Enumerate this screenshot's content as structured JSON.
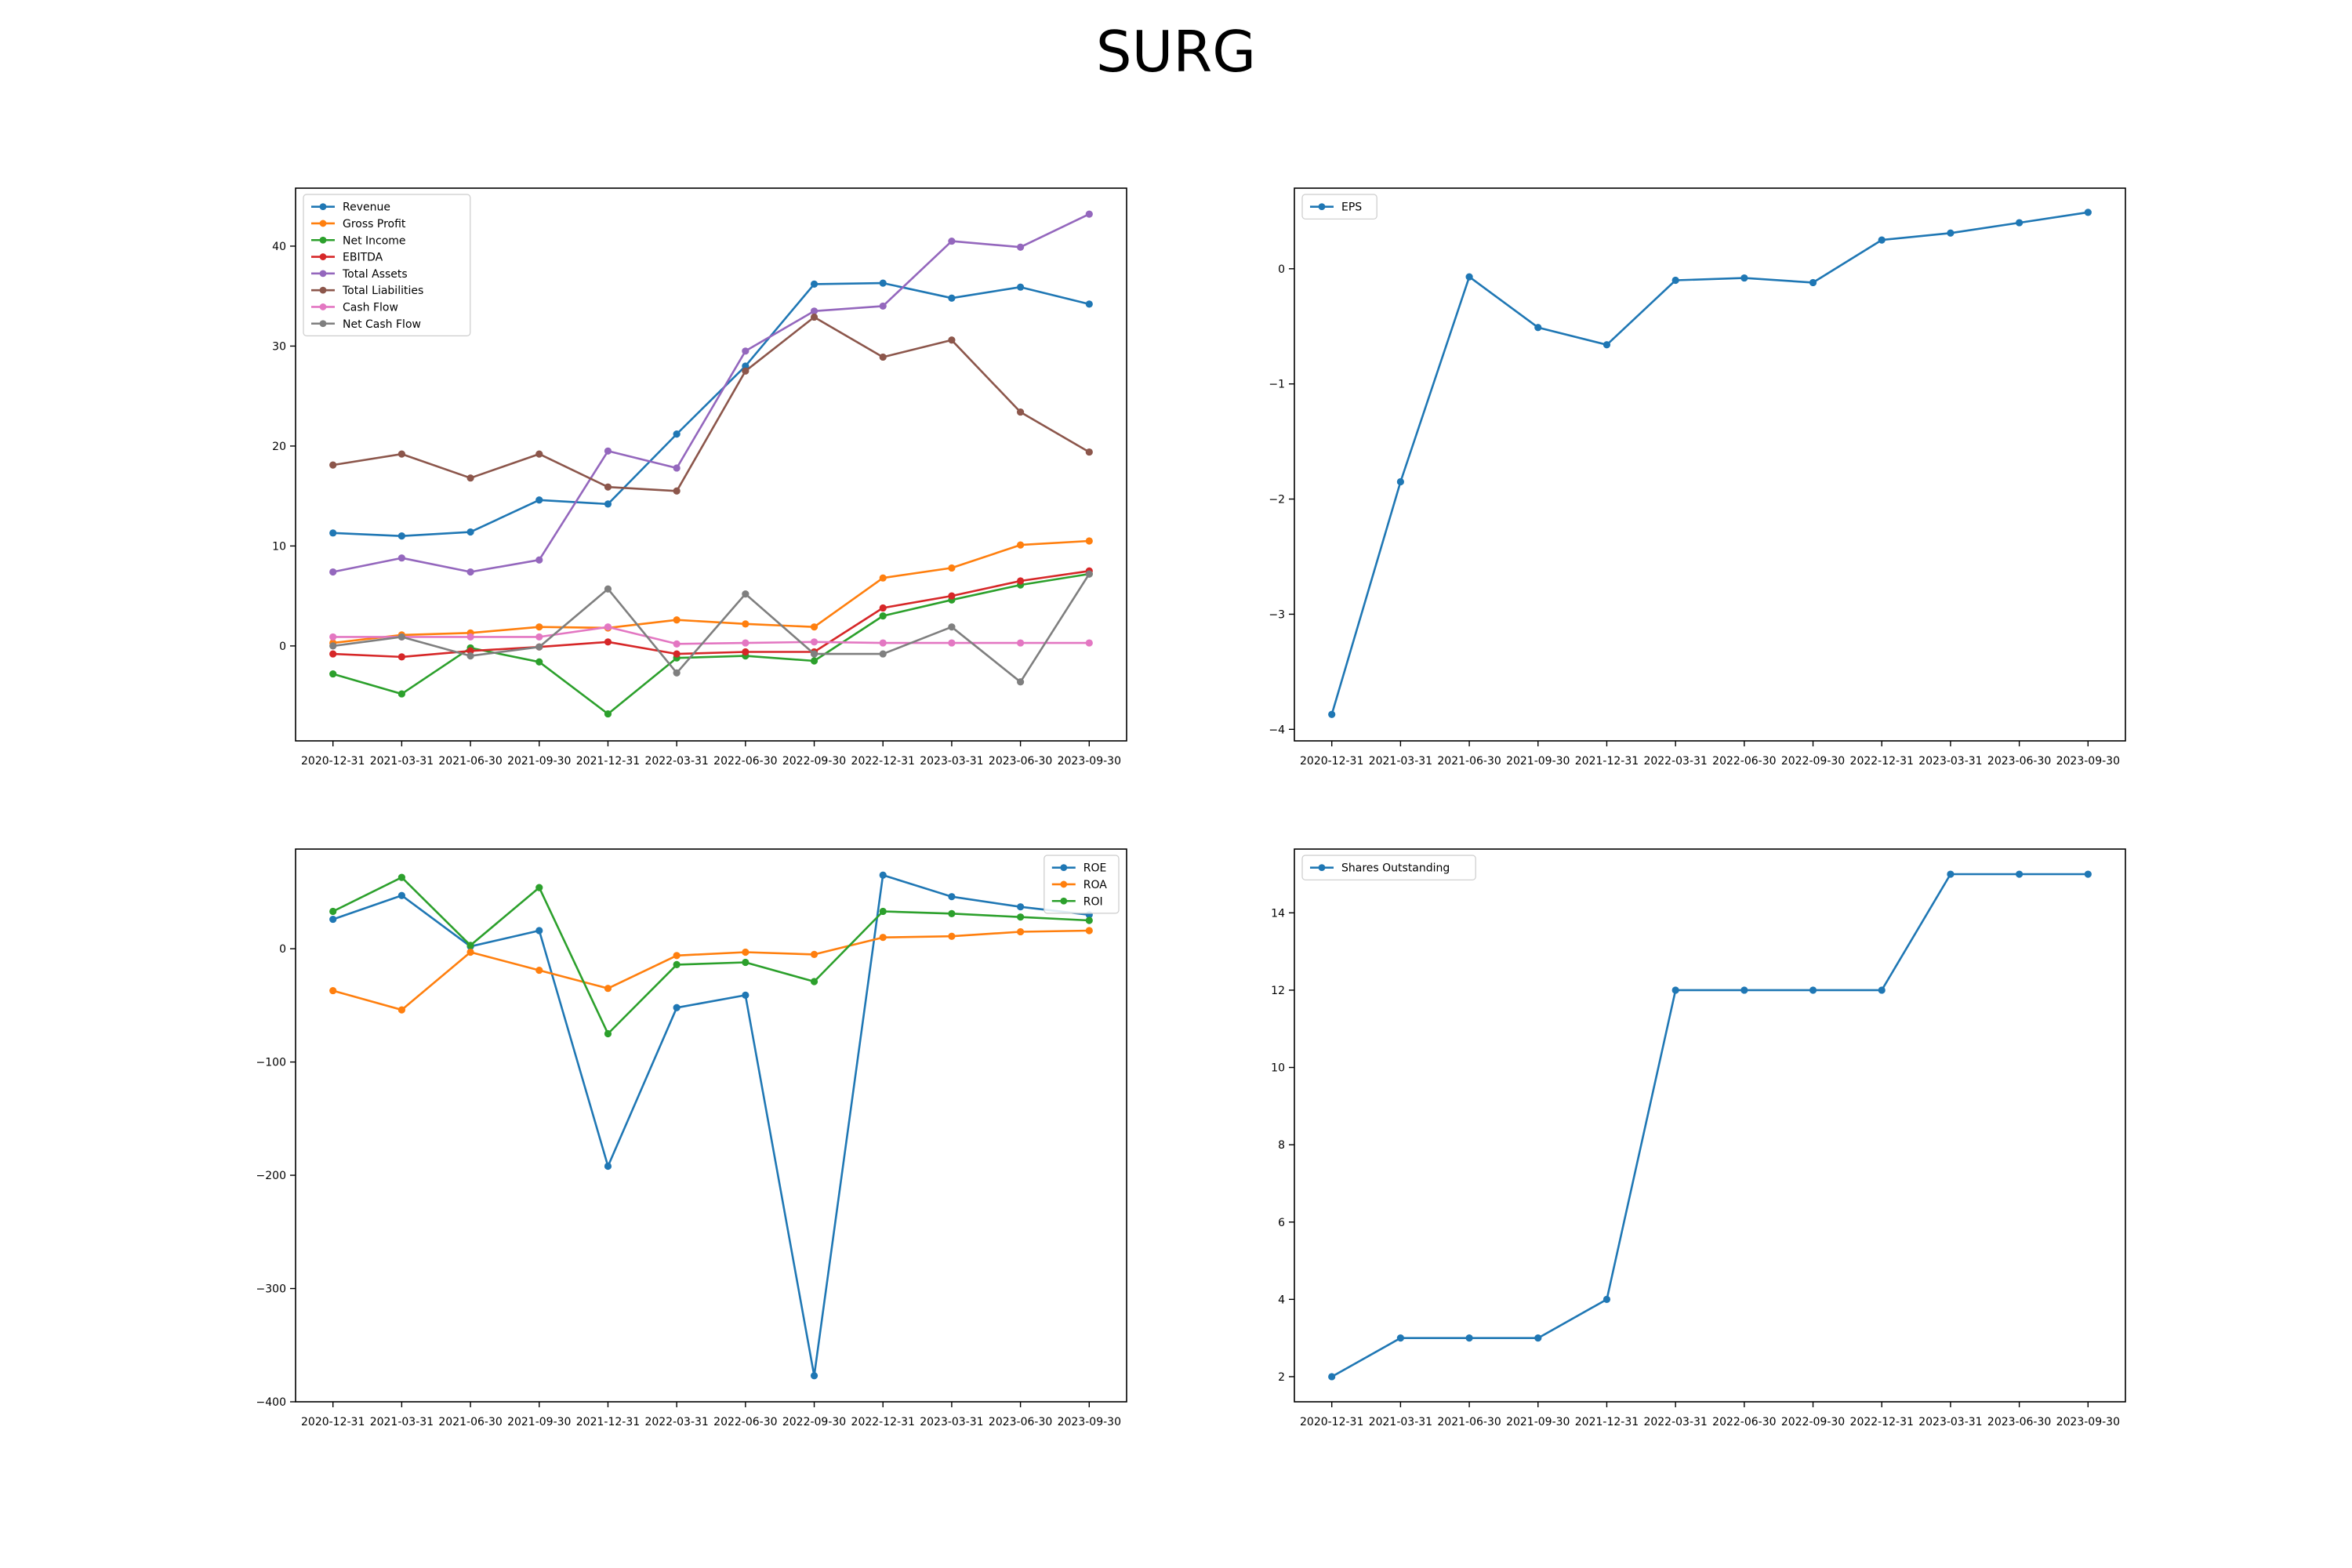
{
  "figure_title": "SURG",
  "chart_data": [
    {
      "type": "line",
      "categories": [
        "2020-12-31",
        "2021-03-31",
        "2021-06-30",
        "2021-09-30",
        "2021-12-31",
        "2022-03-31",
        "2022-06-30",
        "2022-09-30",
        "2022-12-31",
        "2023-03-31",
        "2023-06-30",
        "2023-09-30"
      ],
      "ylim": [
        -9.5,
        45.8
      ],
      "yticks": [
        0,
        10,
        20,
        30,
        40
      ],
      "legend_position": "upper left",
      "grid": false,
      "series": [
        {
          "name": "Revenue",
          "color": "#1f77b4",
          "values": [
            11.3,
            11.0,
            11.4,
            14.6,
            14.2,
            21.2,
            28.0,
            36.2,
            36.3,
            34.8,
            35.9,
            34.2
          ]
        },
        {
          "name": "Gross Profit",
          "color": "#ff7f0e",
          "values": [
            0.3,
            1.1,
            1.3,
            1.9,
            1.8,
            2.6,
            2.2,
            1.9,
            6.8,
            7.8,
            10.1,
            10.5
          ]
        },
        {
          "name": "Net Income",
          "color": "#2ca02c",
          "values": [
            -2.8,
            -4.8,
            -0.2,
            -1.6,
            -6.8,
            -1.2,
            -1.0,
            -1.5,
            3.0,
            4.6,
            6.1,
            7.2
          ]
        },
        {
          "name": "EBITDA",
          "color": "#d62728",
          "values": [
            -0.8,
            -1.1,
            -0.5,
            -0.1,
            0.4,
            -0.8,
            -0.6,
            -0.6,
            3.8,
            5.0,
            6.5,
            7.5
          ]
        },
        {
          "name": "Total Assets",
          "color": "#9467bd",
          "values": [
            7.4,
            8.8,
            7.4,
            8.6,
            19.5,
            17.8,
            29.5,
            33.5,
            34.0,
            40.5,
            39.9,
            43.2
          ]
        },
        {
          "name": "Total Liabilities",
          "color": "#8c564b",
          "values": [
            18.1,
            19.2,
            16.8,
            19.2,
            15.9,
            15.5,
            27.5,
            32.9,
            28.9,
            30.6,
            23.4,
            19.4
          ]
        },
        {
          "name": "Cash Flow",
          "color": "#e377c2",
          "values": [
            0.9,
            0.9,
            0.9,
            0.9,
            1.9,
            0.2,
            0.3,
            0.4,
            0.3,
            0.3,
            0.3,
            0.3
          ]
        },
        {
          "name": "Net Cash Flow",
          "color": "#7f7f7f",
          "values": [
            0.0,
            0.9,
            -1.0,
            -0.1,
            5.7,
            -2.7,
            5.2,
            -0.8,
            -0.8,
            1.9,
            -3.6,
            7.2
          ]
        }
      ]
    },
    {
      "type": "line",
      "categories": [
        "2020-12-31",
        "2021-03-31",
        "2021-06-30",
        "2021-09-30",
        "2021-12-31",
        "2022-03-31",
        "2022-06-30",
        "2022-09-30",
        "2022-12-31",
        "2023-03-31",
        "2023-06-30",
        "2023-09-30"
      ],
      "ylim": [
        -4.1,
        0.7
      ],
      "yticks": [
        -4,
        -3,
        -2,
        -1,
        0
      ],
      "legend_position": "upper left",
      "grid": false,
      "series": [
        {
          "name": "EPS",
          "color": "#1f77b4",
          "values": [
            -3.87,
            -1.85,
            -0.07,
            -0.51,
            -0.66,
            -0.1,
            -0.08,
            -0.12,
            0.25,
            0.31,
            0.4,
            0.49
          ]
        }
      ]
    },
    {
      "type": "line",
      "categories": [
        "2020-12-31",
        "2021-03-31",
        "2021-06-30",
        "2021-09-30",
        "2021-12-31",
        "2022-03-31",
        "2022-06-30",
        "2022-09-30",
        "2022-12-31",
        "2023-03-31",
        "2023-06-30",
        "2023-09-30"
      ],
      "ylim": [
        -400,
        88
      ],
      "yticks": [
        -400,
        -300,
        -200,
        -100,
        0
      ],
      "legend_position": "upper right",
      "grid": false,
      "series": [
        {
          "name": "ROE",
          "color": "#1f77b4",
          "values": [
            26,
            47,
            2,
            16,
            -192,
            -52,
            -41,
            -377,
            65,
            46,
            37,
            30
          ]
        },
        {
          "name": "ROA",
          "color": "#ff7f0e",
          "values": [
            -37,
            -54,
            -3,
            -19,
            -35,
            -6,
            -3,
            -5,
            10,
            11,
            15,
            16
          ]
        },
        {
          "name": "ROI",
          "color": "#2ca02c",
          "values": [
            33,
            63,
            3,
            54,
            -75,
            -14,
            -12,
            -29,
            33,
            31,
            28,
            25
          ]
        }
      ]
    },
    {
      "type": "line",
      "categories": [
        "2020-12-31",
        "2021-03-31",
        "2021-06-30",
        "2021-09-30",
        "2021-12-31",
        "2022-03-31",
        "2022-06-30",
        "2022-09-30",
        "2022-12-31",
        "2023-03-31",
        "2023-06-30",
        "2023-09-30"
      ],
      "ylim": [
        1.35,
        15.65
      ],
      "yticks": [
        2,
        4,
        6,
        8,
        10,
        12,
        14
      ],
      "legend_position": "upper left",
      "grid": false,
      "series": [
        {
          "name": "Shares Outstanding",
          "color": "#1f77b4",
          "values": [
            2,
            3,
            3,
            3,
            4,
            12,
            12,
            12,
            12,
            15,
            15,
            15
          ]
        }
      ]
    }
  ]
}
